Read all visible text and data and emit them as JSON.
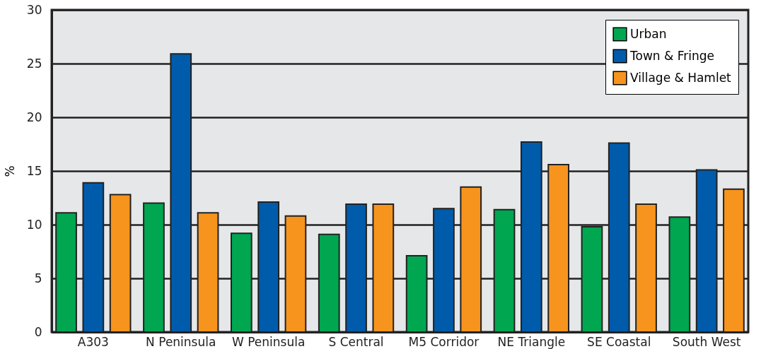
{
  "chart_data": {
    "type": "bar",
    "ylabel": "%",
    "categories": [
      "A303",
      "N Peninsula",
      "W Peninsula",
      "S Central",
      "M5 Corridor",
      "NE Triangle",
      "SE Coastal",
      "South West"
    ],
    "series": [
      {
        "name": "Urban",
        "color": "#00a650",
        "values": [
          11.1,
          12.0,
          9.2,
          9.1,
          7.1,
          11.4,
          9.8,
          10.7
        ]
      },
      {
        "name": "Town & Fringe",
        "color": "#005bab",
        "values": [
          13.9,
          25.9,
          12.1,
          11.9,
          11.5,
          17.7,
          17.6,
          15.1
        ]
      },
      {
        "name": "Village & Hamlet",
        "color": "#f7941d",
        "values": [
          12.8,
          11.1,
          10.8,
          11.9,
          13.5,
          15.6,
          11.9,
          13.3
        ]
      }
    ],
    "ylim": [
      0,
      30
    ],
    "yticks": [
      0,
      5,
      10,
      15,
      20,
      25,
      30
    ],
    "grid": "y",
    "legend": "top right"
  }
}
